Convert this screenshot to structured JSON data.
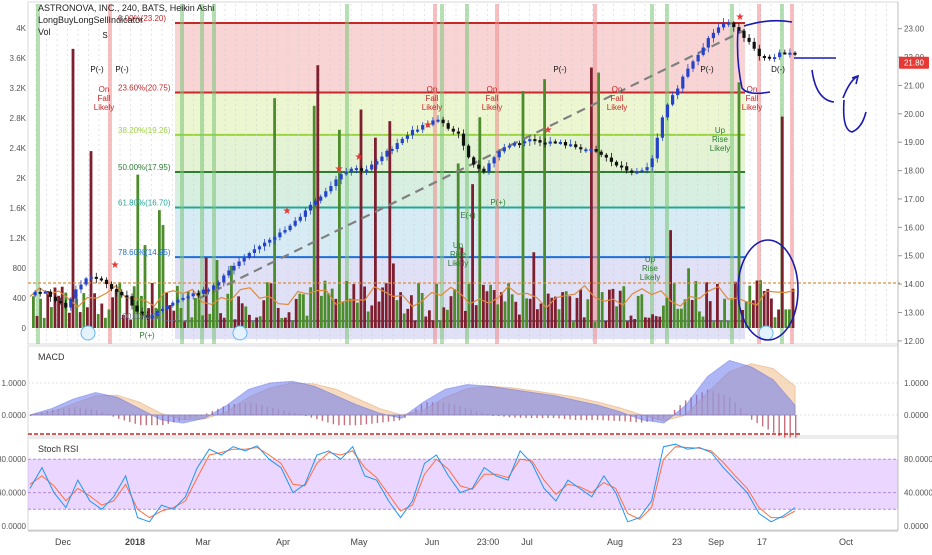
{
  "header": {
    "symbol_line": "ASTRONOVA, INC., 240, BATS, Heikin Ashi",
    "indicator_line": "LongBuyLongSellIndicator",
    "volume_label": "Vol"
  },
  "colors": {
    "bull": "#2343c9",
    "bear": "#111111",
    "vol_up": "#4c8c2c",
    "vol_down": "#7d1f2f",
    "fib_red": "#c62828",
    "fib_lime": "#9bd43c",
    "fib_green": "#2e7d32",
    "fib_teal": "#26a69a",
    "fib_blue": "#1e6fd9",
    "vol_ma": "#e08a3c",
    "macd_line": "#6c7cf0",
    "signal_line": "#f4c9a0",
    "stoch_k": "#2196f3",
    "stoch_d": "#ff7043",
    "rsi_band": "#d8b4fe",
    "price_tag": "#e53935",
    "annotation": "#1a1aaf"
  },
  "chart_data": [
    {
      "type": "candlestick",
      "title": "ASTRONOVA, INC., 240, BATS, Heikin Ashi",
      "ylim": [
        11.8,
        24.2
      ],
      "y_ticks": [
        "24.00",
        "23.00",
        "22.00",
        "21.00",
        "20.00",
        "19.00",
        "18.00",
        "17.00",
        "16.00",
        "15.00",
        "14.00",
        "13.00",
        "12.00"
      ],
      "volume_ticks": [
        "4K",
        "3.6K",
        "3.2K",
        "2.8K",
        "2.4K",
        "2K",
        "1.6K",
        "1.2K",
        "800",
        "400",
        "0"
      ],
      "x_ticks": [
        "Dec",
        "2018",
        "Mar",
        "Apr",
        "May",
        "Jun",
        "23:00",
        "Jul",
        "Aug",
        "23",
        "Sep",
        "17",
        "Oct"
      ],
      "last_price": "21.80",
      "price_path": [
        13.6,
        13.8,
        13.5,
        13.2,
        13.9,
        14.3,
        14.1,
        13.8,
        13.6,
        13.0,
        12.8,
        13.1,
        13.4,
        13.6,
        13.7,
        13.8,
        14.2,
        14.6,
        14.9,
        15.3,
        15.6,
        15.8,
        16.1,
        16.6,
        17.0,
        17.4,
        17.9,
        18.1,
        18.0,
        18.3,
        18.7,
        19.1,
        19.4,
        19.6,
        19.8,
        19.5,
        19.2,
        18.2,
        18.0,
        18.6,
        18.9,
        19.0,
        19.1,
        19.0,
        19.0,
        18.9,
        18.8,
        18.7,
        18.5,
        18.2,
        18.0,
        17.9,
        18.3,
        20.0,
        20.8,
        21.6,
        22.2,
        22.8,
        23.2,
        23.1,
        22.6,
        22.0,
        21.9,
        22.2,
        22.1
      ],
      "fibonacci_levels": [
        {
          "label": "0.00%(23.20)",
          "value": 23.2
        },
        {
          "label": "23.60%(20.75)",
          "value": 20.75
        },
        {
          "label": "38.20%(19.26)",
          "value": 19.26
        },
        {
          "label": "50.00%(17.95)",
          "value": 17.95
        },
        {
          "label": "61.80%(16.70)",
          "value": 16.7
        },
        {
          "label": "78.60%(14.95)",
          "value": 14.95
        },
        {
          "label": "100.00%(12.___)",
          "value": 12.7
        }
      ],
      "signal_labels": [
        "P(-)",
        "P(-)",
        "P(-)",
        "P(-)",
        "D(-)",
        "On Fall Likely",
        "On Fall Likely",
        "On Fall Likely",
        "On Fall Likely",
        "On Fall Likely",
        "Up Rise Likely",
        "Up Rise Likely",
        "Up Rise Likely",
        "E(+)",
        "P(+)",
        "P(+)",
        "S",
        "D"
      ]
    },
    {
      "type": "area",
      "title": "MACD",
      "ylim": [
        -0.5,
        1.85
      ],
      "y_ticks": [
        "1.0000",
        "0.0000"
      ],
      "macd": [
        0.0,
        0.2,
        0.5,
        0.7,
        0.55,
        0.2,
        -0.15,
        -0.25,
        -0.1,
        0.3,
        0.8,
        1.0,
        1.05,
        0.9,
        0.6,
        0.3,
        0.05,
        -0.1,
        0.4,
        0.8,
        0.95,
        0.9,
        0.8,
        0.7,
        0.6,
        0.45,
        0.3,
        0.1,
        -0.15,
        -0.25,
        0.3,
        1.2,
        1.7,
        1.5,
        1.1,
        0.3
      ],
      "signal": [
        0.0,
        0.1,
        0.35,
        0.6,
        0.62,
        0.4,
        0.05,
        -0.15,
        -0.12,
        0.1,
        0.55,
        0.85,
        1.0,
        0.97,
        0.8,
        0.5,
        0.2,
        0.0,
        0.15,
        0.55,
        0.82,
        0.9,
        0.85,
        0.76,
        0.66,
        0.55,
        0.4,
        0.22,
        0.0,
        -0.18,
        0.0,
        0.7,
        1.35,
        1.6,
        1.45,
        0.9
      ]
    },
    {
      "type": "line",
      "title": "Stoch RSI",
      "ylim": [
        -5,
        105
      ],
      "y_ticks": [
        "80.0000",
        "40.0000",
        "0.0000"
      ],
      "band": [
        20,
        80
      ],
      "k": [
        45,
        70,
        40,
        22,
        55,
        30,
        20,
        35,
        60,
        10,
        5,
        25,
        20,
        35,
        70,
        92,
        85,
        95,
        90,
        96,
        80,
        70,
        40,
        50,
        85,
        90,
        80,
        95,
        60,
        55,
        30,
        10,
        30,
        75,
        85,
        60,
        40,
        45,
        70,
        60,
        55,
        90,
        75,
        45,
        30,
        55,
        45,
        35,
        60,
        40,
        5,
        10,
        30,
        95,
        98,
        92,
        94,
        88,
        70,
        55,
        40,
        15,
        5,
        12,
        22
      ],
      "d": [
        50,
        60,
        48,
        30,
        45,
        36,
        25,
        30,
        50,
        20,
        10,
        18,
        22,
        30,
        58,
        85,
        88,
        92,
        92,
        94,
        85,
        75,
        50,
        48,
        75,
        88,
        85,
        90,
        70,
        58,
        38,
        18,
        25,
        62,
        80,
        68,
        48,
        44,
        62,
        62,
        58,
        80,
        78,
        55,
        38,
        50,
        47,
        40,
        52,
        45,
        15,
        8,
        22,
        80,
        95,
        94,
        93,
        90,
        76,
        60,
        45,
        22,
        10,
        10,
        18
      ]
    }
  ]
}
